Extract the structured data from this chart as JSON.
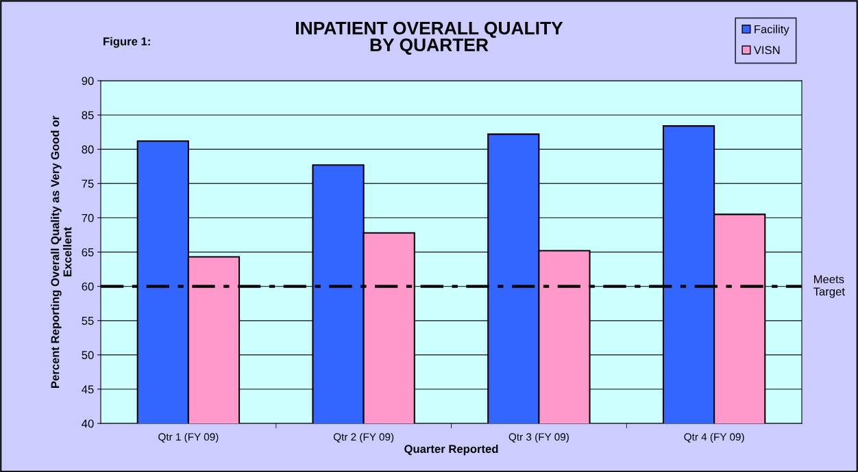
{
  "chart_data": {
    "type": "bar",
    "title": "INPATIENT OVERALL QUALITY\nBY QUARTER",
    "xlabel": "Quarter Reported",
    "ylabel": "Percent Reporting Overall Quality as Very Good or\nExcellent",
    "categories": [
      "Qtr 1 (FY 09)",
      "Qtr 2 (FY 09)",
      "Qtr 3 (FY 09)",
      "Qtr 4 (FY 09)"
    ],
    "series": [
      {
        "name": "Facility",
        "color": "#3366ff",
        "values": [
          81.2,
          77.7,
          82.2,
          83.4
        ]
      },
      {
        "name": "VISN",
        "color": "#ff99cc",
        "values": [
          64.3,
          67.8,
          65.2,
          70.5
        ]
      }
    ],
    "ylim": [
      40,
      90
    ],
    "yticks": [
      40,
      45,
      50,
      55,
      60,
      65,
      70,
      75,
      80,
      85,
      90
    ],
    "grid": "y",
    "legend": "top right",
    "ref_lines": [
      {
        "axis": "y",
        "value": 60,
        "label": "Meets\nTarget",
        "color": "#000000",
        "line_style": "dashdot"
      }
    ],
    "annotations": [
      "Figure 1:"
    ]
  }
}
